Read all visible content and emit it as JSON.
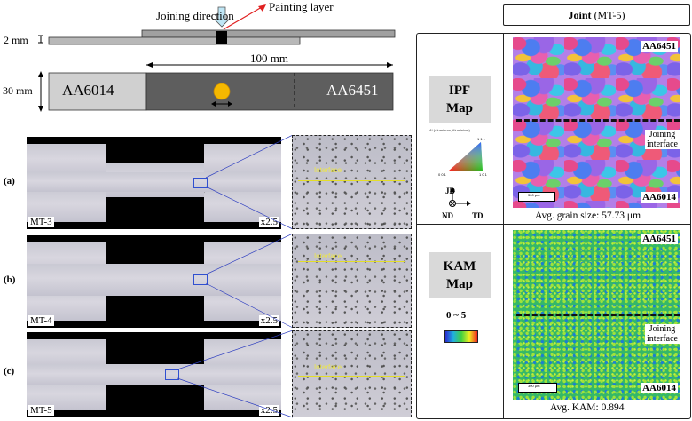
{
  "schematic": {
    "joining_direction": "Joining direction",
    "painting_layer": "Painting layer",
    "thickness": "2 mm",
    "width": "30 mm",
    "length": "100 mm",
    "left_alloy": "AA6014",
    "right_alloy": "AA6451"
  },
  "micrographs": [
    {
      "label": "(a)",
      "sample": "MT-3",
      "mag": "x2.5",
      "interface": "Interface"
    },
    {
      "label": "(b)",
      "sample": "MT-4",
      "mag": "x2.5",
      "interface": "Interface"
    },
    {
      "label": "(c)",
      "sample": "MT-5",
      "mag": "x2.5",
      "interface": "Interface"
    }
  ],
  "panel": {
    "title_bold": "Joint",
    "title_rest": " (MT-5)",
    "ipf": {
      "label_line1": "IPF",
      "label_line2": "Map",
      "legend_title": "Al (Aluminum, Aluminium)",
      "pole_111": "1 1 1",
      "pole_001": "0 0 1",
      "pole_101": "1 0 1",
      "axis_jd": "JD",
      "axis_nd": "ND",
      "axis_td": "TD",
      "top_alloy": "AA6451",
      "bottom_alloy": "AA6014",
      "interface_line1": "Joining",
      "interface_line2": "interface",
      "scalebar": "300 μm",
      "caption": "Avg. grain size: 57.73 μm"
    },
    "kam": {
      "label_line1": "KAM",
      "label_line2": "Map",
      "range": "0 ~ 5",
      "top_alloy": "AA6451",
      "bottom_alloy": "AA6014",
      "interface_line1": "Joining",
      "interface_line2": "interface",
      "scalebar": "300 μm",
      "caption": "Avg. KAM: 0.894"
    }
  },
  "colors": {
    "ipf_label_bg": "#d9d9d9",
    "tool_circle": "#f5b800",
    "arrow_red": "#e02020",
    "arrow_light_blue": "#bfe6f5"
  }
}
